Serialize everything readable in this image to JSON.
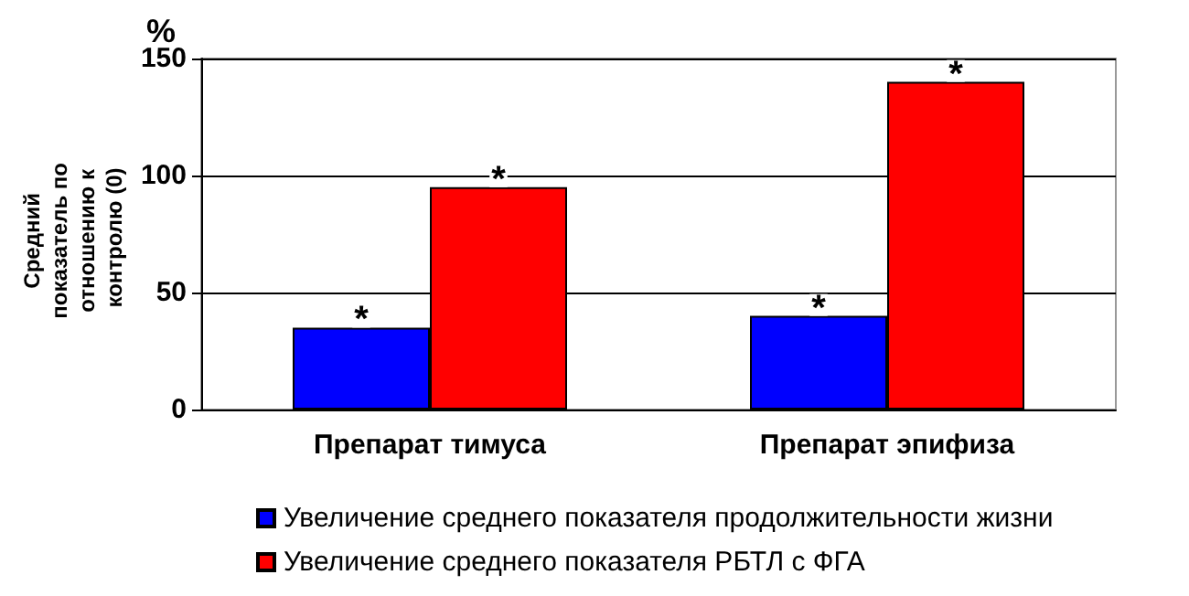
{
  "chart_data": {
    "type": "bar",
    "ylabel": "Средний показатель по отношению к контролю (0)",
    "categories": [
      "Препарат тимуса",
      "Препарат эпифиза"
    ],
    "series": [
      {
        "name": "Увеличение среднего показателя продолжительности жизни",
        "color": "#0000ff",
        "values": [
          35,
          40
        ]
      },
      {
        "name": "Увеличение среднего показателя РБТЛ с ФГА",
        "color": "#ff0000",
        "values": [
          95,
          140
        ]
      }
    ],
    "ylim": [
      0,
      150
    ],
    "yticks": [
      0,
      50,
      100,
      150
    ],
    "grid": "y",
    "legend": "bottom",
    "annotations": [
      "%",
      {
        "text": "*",
        "x": "Препарат тимуса",
        "y": 35
      },
      {
        "text": "*",
        "x": "Препарат тимуса",
        "y": 95
      },
      {
        "text": "*",
        "x": "Препарат эпифиза",
        "y": 40
      },
      {
        "text": "*",
        "x": "Препарат эпифиза",
        "y": 140
      }
    ]
  }
}
